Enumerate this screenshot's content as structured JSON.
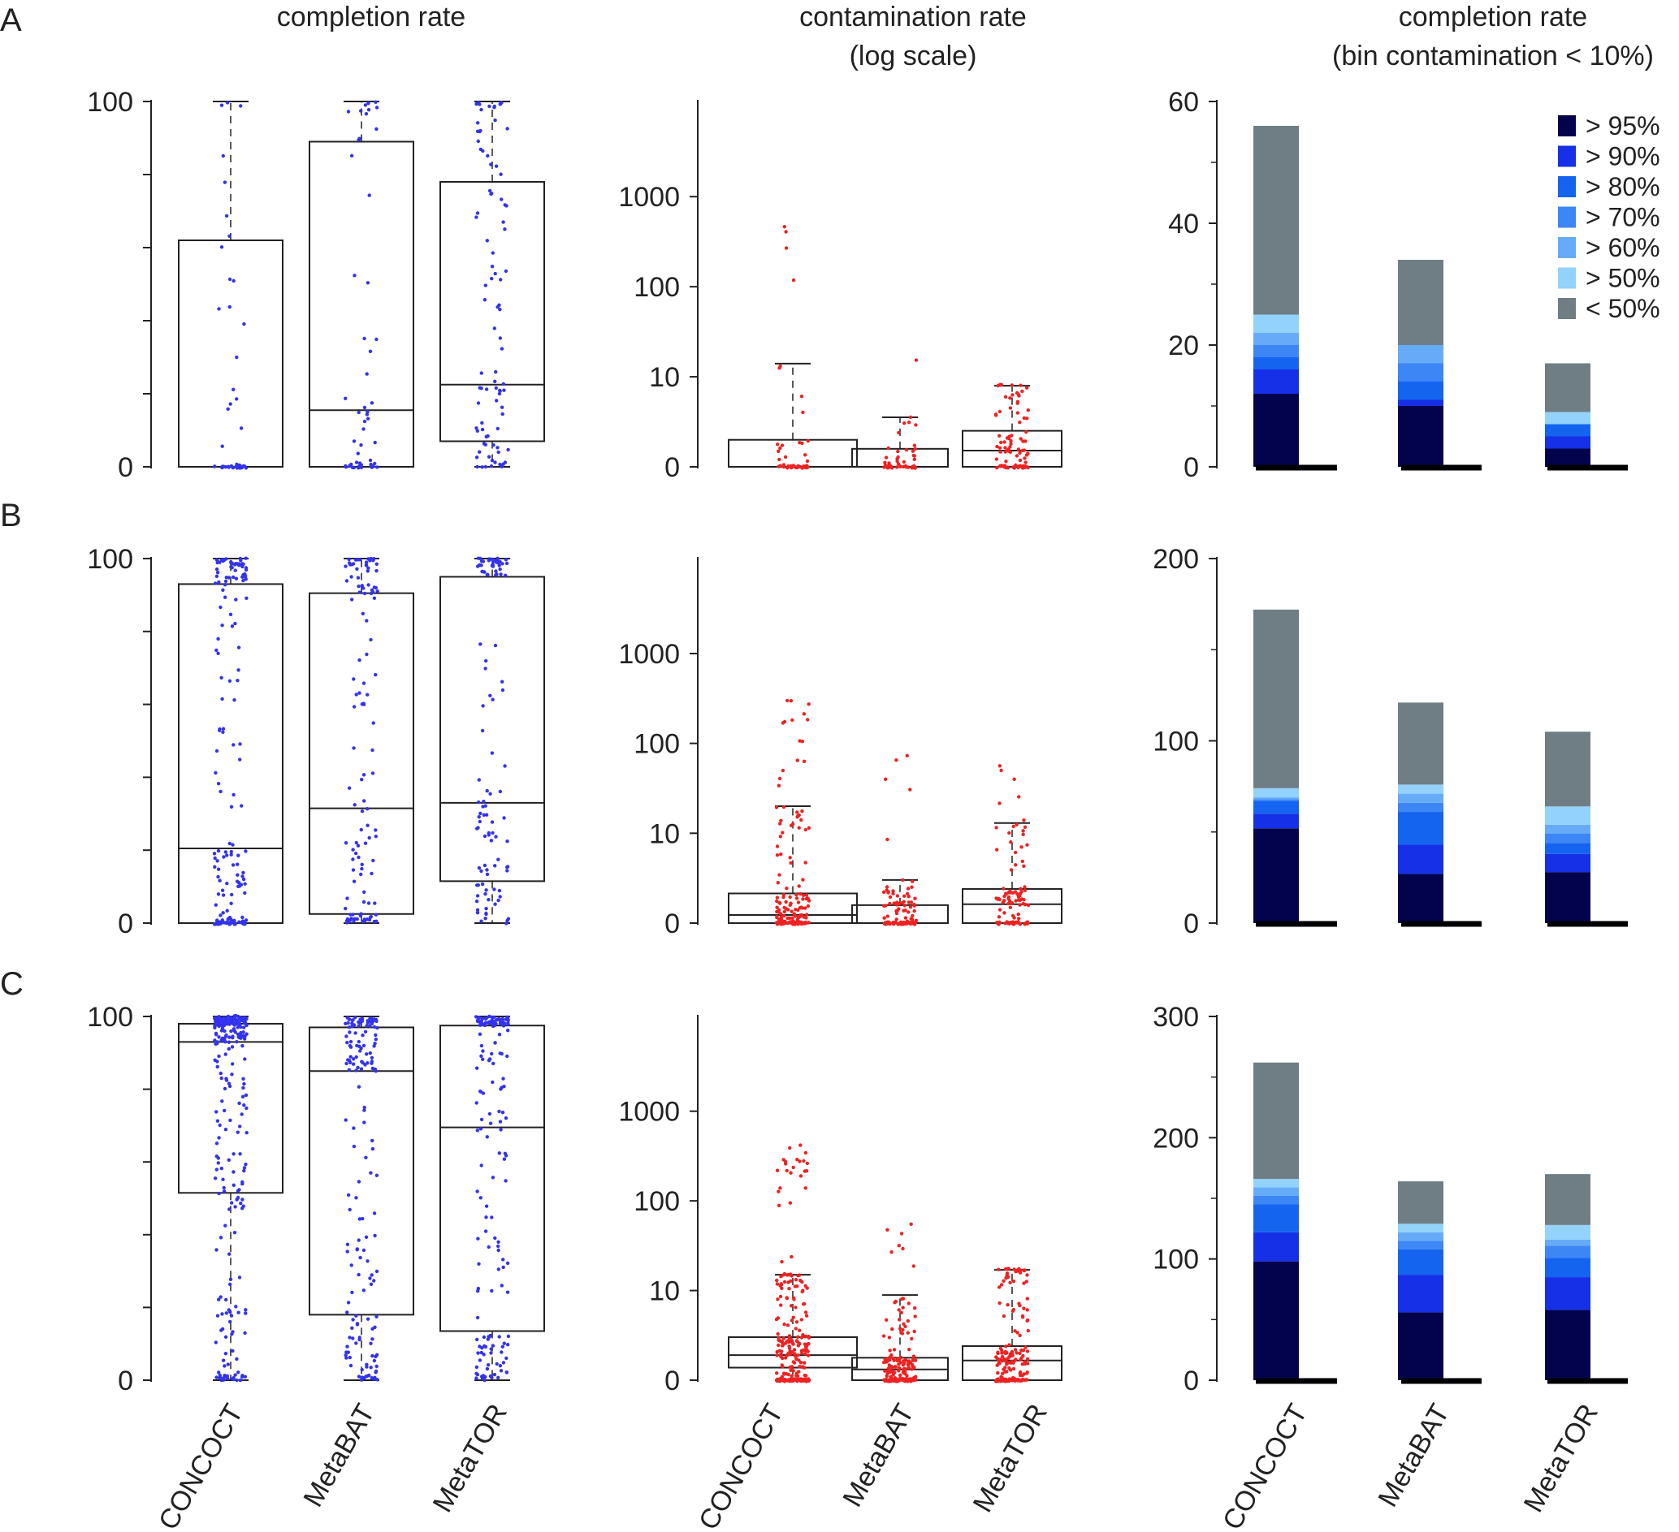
{
  "methods": [
    "CONCOCT",
    "MetaBAT",
    "MetaTOR"
  ],
  "column_titles": {
    "completion": [
      "completion rate"
    ],
    "contamination": [
      "contamination rate",
      "(log scale)"
    ],
    "bars": [
      "completion rate",
      "(bin contamination < 10%)"
    ]
  },
  "panel_letters": [
    "A",
    "B",
    "C"
  ],
  "colors": {
    "completion_points": "#3333ee",
    "contamination_points": "#ee2222",
    "box_stroke": "#222222"
  },
  "chart_data": [
    {
      "panel": "A",
      "type": "box",
      "title": "completion rate",
      "ylim": [
        0,
        100
      ],
      "yticks": [
        0,
        20,
        40,
        60,
        80,
        100
      ],
      "ytick_labels": [
        "0",
        "",
        "",
        "",
        "",
        "100"
      ],
      "series": [
        {
          "name": "CONCOCT",
          "q1": 0,
          "median": 0,
          "q3": 62,
          "whisker_low": 0,
          "whisker_high": 100,
          "n_points": 45
        },
        {
          "name": "MetaBAT",
          "q1": 0,
          "median": 15.5,
          "q3": 89,
          "whisker_low": 0,
          "whisker_high": 100,
          "n_points": 55
        },
        {
          "name": "MetaTOR",
          "q1": 7,
          "median": 22.5,
          "q3": 78,
          "whisker_low": 0,
          "whisker_high": 100,
          "n_points": 90
        }
      ]
    },
    {
      "panel": "A",
      "type": "box",
      "title": "contamination rate (log scale)",
      "scale": "log",
      "yticks": [
        0,
        10,
        100,
        1000
      ],
      "ytick_labels": [
        "0",
        "10",
        "100",
        "1000"
      ],
      "series": [
        {
          "name": "CONCOCT",
          "q1": 0,
          "median": 0,
          "q3": 3,
          "whisker_low": 0,
          "whisker_high": 14,
          "max_point": 450,
          "n_points": 45
        },
        {
          "name": "MetaBAT",
          "q1": 0,
          "median": 0,
          "q3": 2,
          "whisker_low": 0,
          "whisker_high": 5.5,
          "max_point": 15,
          "n_points": 55
        },
        {
          "name": "MetaTOR",
          "q1": 0,
          "median": 1.8,
          "q3": 4,
          "whisker_low": 0,
          "whisker_high": 9,
          "max_point": 9,
          "n_points": 90
        }
      ]
    },
    {
      "panel": "A",
      "type": "bar",
      "stacked": true,
      "title": "completion rate (bin contamination < 10%)",
      "ylim": [
        0,
        60
      ],
      "yticks": [
        0,
        20,
        40,
        60
      ],
      "ytick_labels": [
        "0",
        "20",
        "40",
        "60"
      ],
      "categories": [
        "CONCOCT",
        "MetaBAT",
        "MetaTOR"
      ],
      "series": [
        {
          "name": "> 95%",
          "values": [
            12,
            10,
            3
          ]
        },
        {
          "name": "> 90%",
          "values": [
            4,
            1,
            2
          ]
        },
        {
          "name": "> 80%",
          "values": [
            2,
            3,
            2
          ]
        },
        {
          "name": "> 70%",
          "values": [
            2,
            3,
            0
          ]
        },
        {
          "name": "> 60%",
          "values": [
            2,
            3,
            0
          ]
        },
        {
          "name": "> 50%",
          "values": [
            3,
            0,
            2
          ]
        },
        {
          "name": "< 50%",
          "values": [
            31,
            14,
            8
          ]
        }
      ]
    },
    {
      "panel": "B",
      "type": "box",
      "title": "completion rate",
      "ylim": [
        0,
        100
      ],
      "yticks": [
        0,
        20,
        40,
        60,
        80,
        100
      ],
      "ytick_labels": [
        "0",
        "",
        "",
        "",
        "",
        "100"
      ],
      "series": [
        {
          "name": "CONCOCT",
          "q1": 0,
          "median": 20.5,
          "q3": 93,
          "whisker_low": 0,
          "whisker_high": 100,
          "n_points": 170
        },
        {
          "name": "MetaBAT",
          "q1": 2.5,
          "median": 31.5,
          "q3": 90.5,
          "whisker_low": 0,
          "whisker_high": 100,
          "n_points": 120
        },
        {
          "name": "MetaTOR",
          "q1": 11.5,
          "median": 33,
          "q3": 95,
          "whisker_low": 0,
          "whisker_high": 100,
          "n_points": 105
        }
      ]
    },
    {
      "panel": "B",
      "type": "box",
      "title": "contamination rate (log scale)",
      "scale": "log",
      "yticks": [
        0,
        10,
        100,
        1000
      ],
      "ytick_labels": [
        "0",
        "10",
        "100",
        "1000"
      ],
      "series": [
        {
          "name": "CONCOCT",
          "q1": 0,
          "median": 0.9,
          "q3": 3.3,
          "whisker_low": 0,
          "whisker_high": 20,
          "max_point": 300,
          "n_points": 170
        },
        {
          "name": "MetaBAT",
          "q1": 0,
          "median": 0,
          "q3": 2,
          "whisker_low": 0,
          "whisker_high": 4.8,
          "max_point": 75,
          "n_points": 120
        },
        {
          "name": "MetaTOR",
          "q1": 0,
          "median": 2.1,
          "q3": 3.8,
          "whisker_low": 0,
          "whisker_high": 13,
          "max_point": 55,
          "n_points": 105
        }
      ]
    },
    {
      "panel": "B",
      "type": "bar",
      "stacked": true,
      "title": "completion rate (bin contamination < 10%)",
      "ylim": [
        0,
        200
      ],
      "yticks": [
        0,
        100,
        200
      ],
      "ytick_labels": [
        "0",
        "100",
        "200"
      ],
      "categories": [
        "CONCOCT",
        "MetaBAT",
        "MetaTOR"
      ],
      "series": [
        {
          "name": "> 95%",
          "values": [
            52,
            27,
            28
          ]
        },
        {
          "name": "> 90%",
          "values": [
            8,
            16,
            10
          ]
        },
        {
          "name": "> 80%",
          "values": [
            7,
            18,
            6
          ]
        },
        {
          "name": "> 70%",
          "values": [
            1,
            5,
            5
          ]
        },
        {
          "name": "> 60%",
          "values": [
            1,
            5,
            5
          ]
        },
        {
          "name": "> 50%",
          "values": [
            5,
            5,
            10
          ]
        },
        {
          "name": "< 50%",
          "values": [
            98,
            45,
            41
          ]
        }
      ]
    },
    {
      "panel": "C",
      "type": "box",
      "title": "completion rate",
      "ylim": [
        0,
        100
      ],
      "yticks": [
        0,
        20,
        40,
        60,
        80,
        100
      ],
      "ytick_labels": [
        "0",
        "",
        "",
        "",
        "",
        "100"
      ],
      "series": [
        {
          "name": "CONCOCT",
          "q1": 51.5,
          "median": 93,
          "q3": 98,
          "whisker_low": 0,
          "whisker_high": 100,
          "n_points": 260
        },
        {
          "name": "MetaBAT",
          "q1": 18,
          "median": 85,
          "q3": 97,
          "whisker_low": 0,
          "whisker_high": 100,
          "n_points": 165
        },
        {
          "name": "MetaTOR",
          "q1": 13.5,
          "median": 69.5,
          "q3": 97.5,
          "whisker_low": 0,
          "whisker_high": 100,
          "n_points": 170
        }
      ]
    },
    {
      "panel": "C",
      "type": "box",
      "title": "contamination rate (log scale)",
      "scale": "log",
      "yticks": [
        0,
        10,
        100,
        1000
      ],
      "ytick_labels": [
        "0",
        "10",
        "100",
        "1000"
      ],
      "series": [
        {
          "name": "CONCOCT",
          "q1": 1.4,
          "median": 2.8,
          "q3": 4.8,
          "whisker_low": 0,
          "whisker_high": 15,
          "max_point": 420,
          "n_points": 260
        },
        {
          "name": "MetaBAT",
          "q1": 0,
          "median": 1.2,
          "q3": 2.5,
          "whisker_low": 0,
          "whisker_high": 9.5,
          "max_point": 55,
          "n_points": 165
        },
        {
          "name": "MetaTOR",
          "q1": 0,
          "median": 2.2,
          "q3": 3.8,
          "whisker_low": 0,
          "whisker_high": 17,
          "max_point": 17,
          "n_points": 170
        }
      ]
    },
    {
      "panel": "C",
      "type": "bar",
      "stacked": true,
      "title": "completion rate (bin contamination < 10%)",
      "ylim": [
        0,
        300
      ],
      "yticks": [
        0,
        100,
        200,
        300
      ],
      "ytick_labels": [
        "0",
        "100",
        "200",
        "300"
      ],
      "categories": [
        "CONCOCT",
        "MetaBAT",
        "MetaTOR"
      ],
      "series": [
        {
          "name": "> 95%",
          "values": [
            98,
            56,
            58
          ]
        },
        {
          "name": "> 90%",
          "values": [
            24,
            31,
            27
          ]
        },
        {
          "name": "> 80%",
          "values": [
            23,
            21,
            16
          ]
        },
        {
          "name": "> 70%",
          "values": [
            7,
            7,
            10
          ]
        },
        {
          "name": "> 60%",
          "values": [
            7,
            7,
            5
          ]
        },
        {
          "name": "> 50%",
          "values": [
            7,
            7,
            12
          ]
        },
        {
          "name": "< 50%",
          "values": [
            96,
            35,
            42
          ]
        }
      ]
    }
  ],
  "legend": [
    {
      "label": "> 95%",
      "color": "#03034d"
    },
    {
      "label": "> 90%",
      "color": "#1530e6"
    },
    {
      "label": "> 80%",
      "color": "#1464f0"
    },
    {
      "label": "> 70%",
      "color": "#3c86f5"
    },
    {
      "label": "> 60%",
      "color": "#66abf7"
    },
    {
      "label": "> 50%",
      "color": "#93d2fb"
    },
    {
      "label": "< 50%",
      "color": "#6f7e85"
    }
  ]
}
